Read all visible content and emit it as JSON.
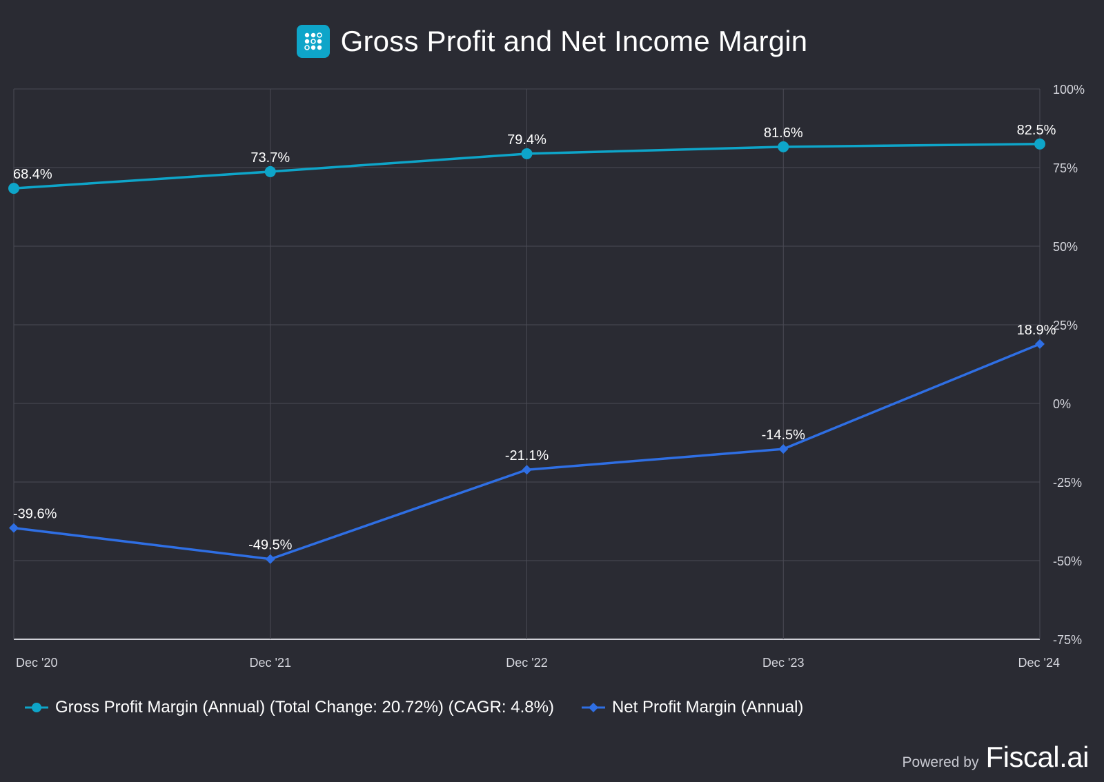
{
  "header": {
    "title": "Gross Profit and Net Income Margin",
    "logo_icon": "grid-dots-icon",
    "logo_color": "#0ea5c9"
  },
  "chart_data": {
    "type": "line",
    "title": "Gross Profit and Net Income Margin",
    "categories": [
      "Dec '20",
      "Dec '21",
      "Dec '22",
      "Dec '23",
      "Dec '24"
    ],
    "series": [
      {
        "name": "Gross Profit Margin (Annual) (Total Change: 20.72%) (CAGR: 4.8%)",
        "values": [
          68.4,
          73.7,
          79.4,
          81.6,
          82.5
        ],
        "labels": [
          "68.4%",
          "73.7%",
          "79.4%",
          "81.6%",
          "82.5%"
        ],
        "color": "#0ea5c9",
        "marker": "circle"
      },
      {
        "name": "Net Profit Margin (Annual)",
        "values": [
          -39.6,
          -49.5,
          -21.1,
          -14.5,
          18.9
        ],
        "labels": [
          "-39.6%",
          "-49.5%",
          "-21.1%",
          "-14.5%",
          "18.9%"
        ],
        "color": "#2f6fe4",
        "marker": "diamond"
      }
    ],
    "yticks": [
      100,
      75,
      50,
      25,
      0,
      -25,
      -50,
      -75
    ],
    "ytick_labels": [
      "100%",
      "75%",
      "50%",
      "25%",
      "0%",
      "-25%",
      "-50%",
      "-75%"
    ],
    "ylim": [
      -75,
      100
    ],
    "y_axis_side": "right",
    "grid": true,
    "legend_position": "bottom-left"
  },
  "footer": {
    "powered_by": "Powered by",
    "brand": "Fiscal.ai"
  }
}
